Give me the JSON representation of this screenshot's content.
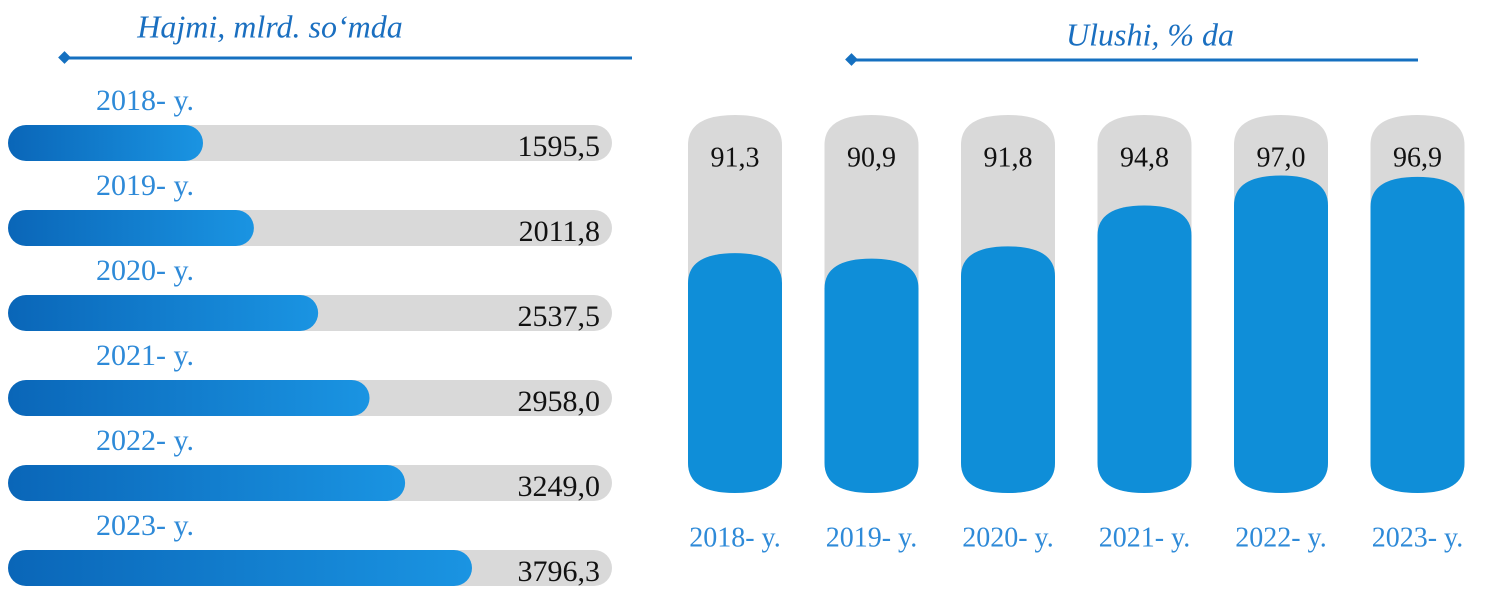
{
  "chart_data": [
    {
      "type": "hbar",
      "title": "Hajmi, mlrd. so‘mda",
      "categories": [
        "2018- y.",
        "2019- y.",
        "2020- y.",
        "2021- y.",
        "2022- y.",
        "2023- y."
      ],
      "values": [
        1595.5,
        2011.8,
        2537.5,
        2958.0,
        3249.0,
        3796.3
      ],
      "value_labels": [
        "1595,5",
        "2011,8",
        "2537,5",
        "2958,0",
        "3249,0",
        "3796,3"
      ],
      "color": "#0f7fd0"
    },
    {
      "type": "cylinder",
      "title": "Ulushi, % da",
      "categories": [
        "2018- y.",
        "2019- y.",
        "2020- y.",
        "2021- y.",
        "2022- y.",
        "2023- y."
      ],
      "values": [
        91.3,
        90.9,
        91.8,
        94.8,
        97.0,
        96.9
      ],
      "value_labels": [
        "91,3",
        "90,9",
        "91,8",
        "94,8",
        "97,0",
        "96,9"
      ],
      "color": "#0f8ed8"
    }
  ]
}
